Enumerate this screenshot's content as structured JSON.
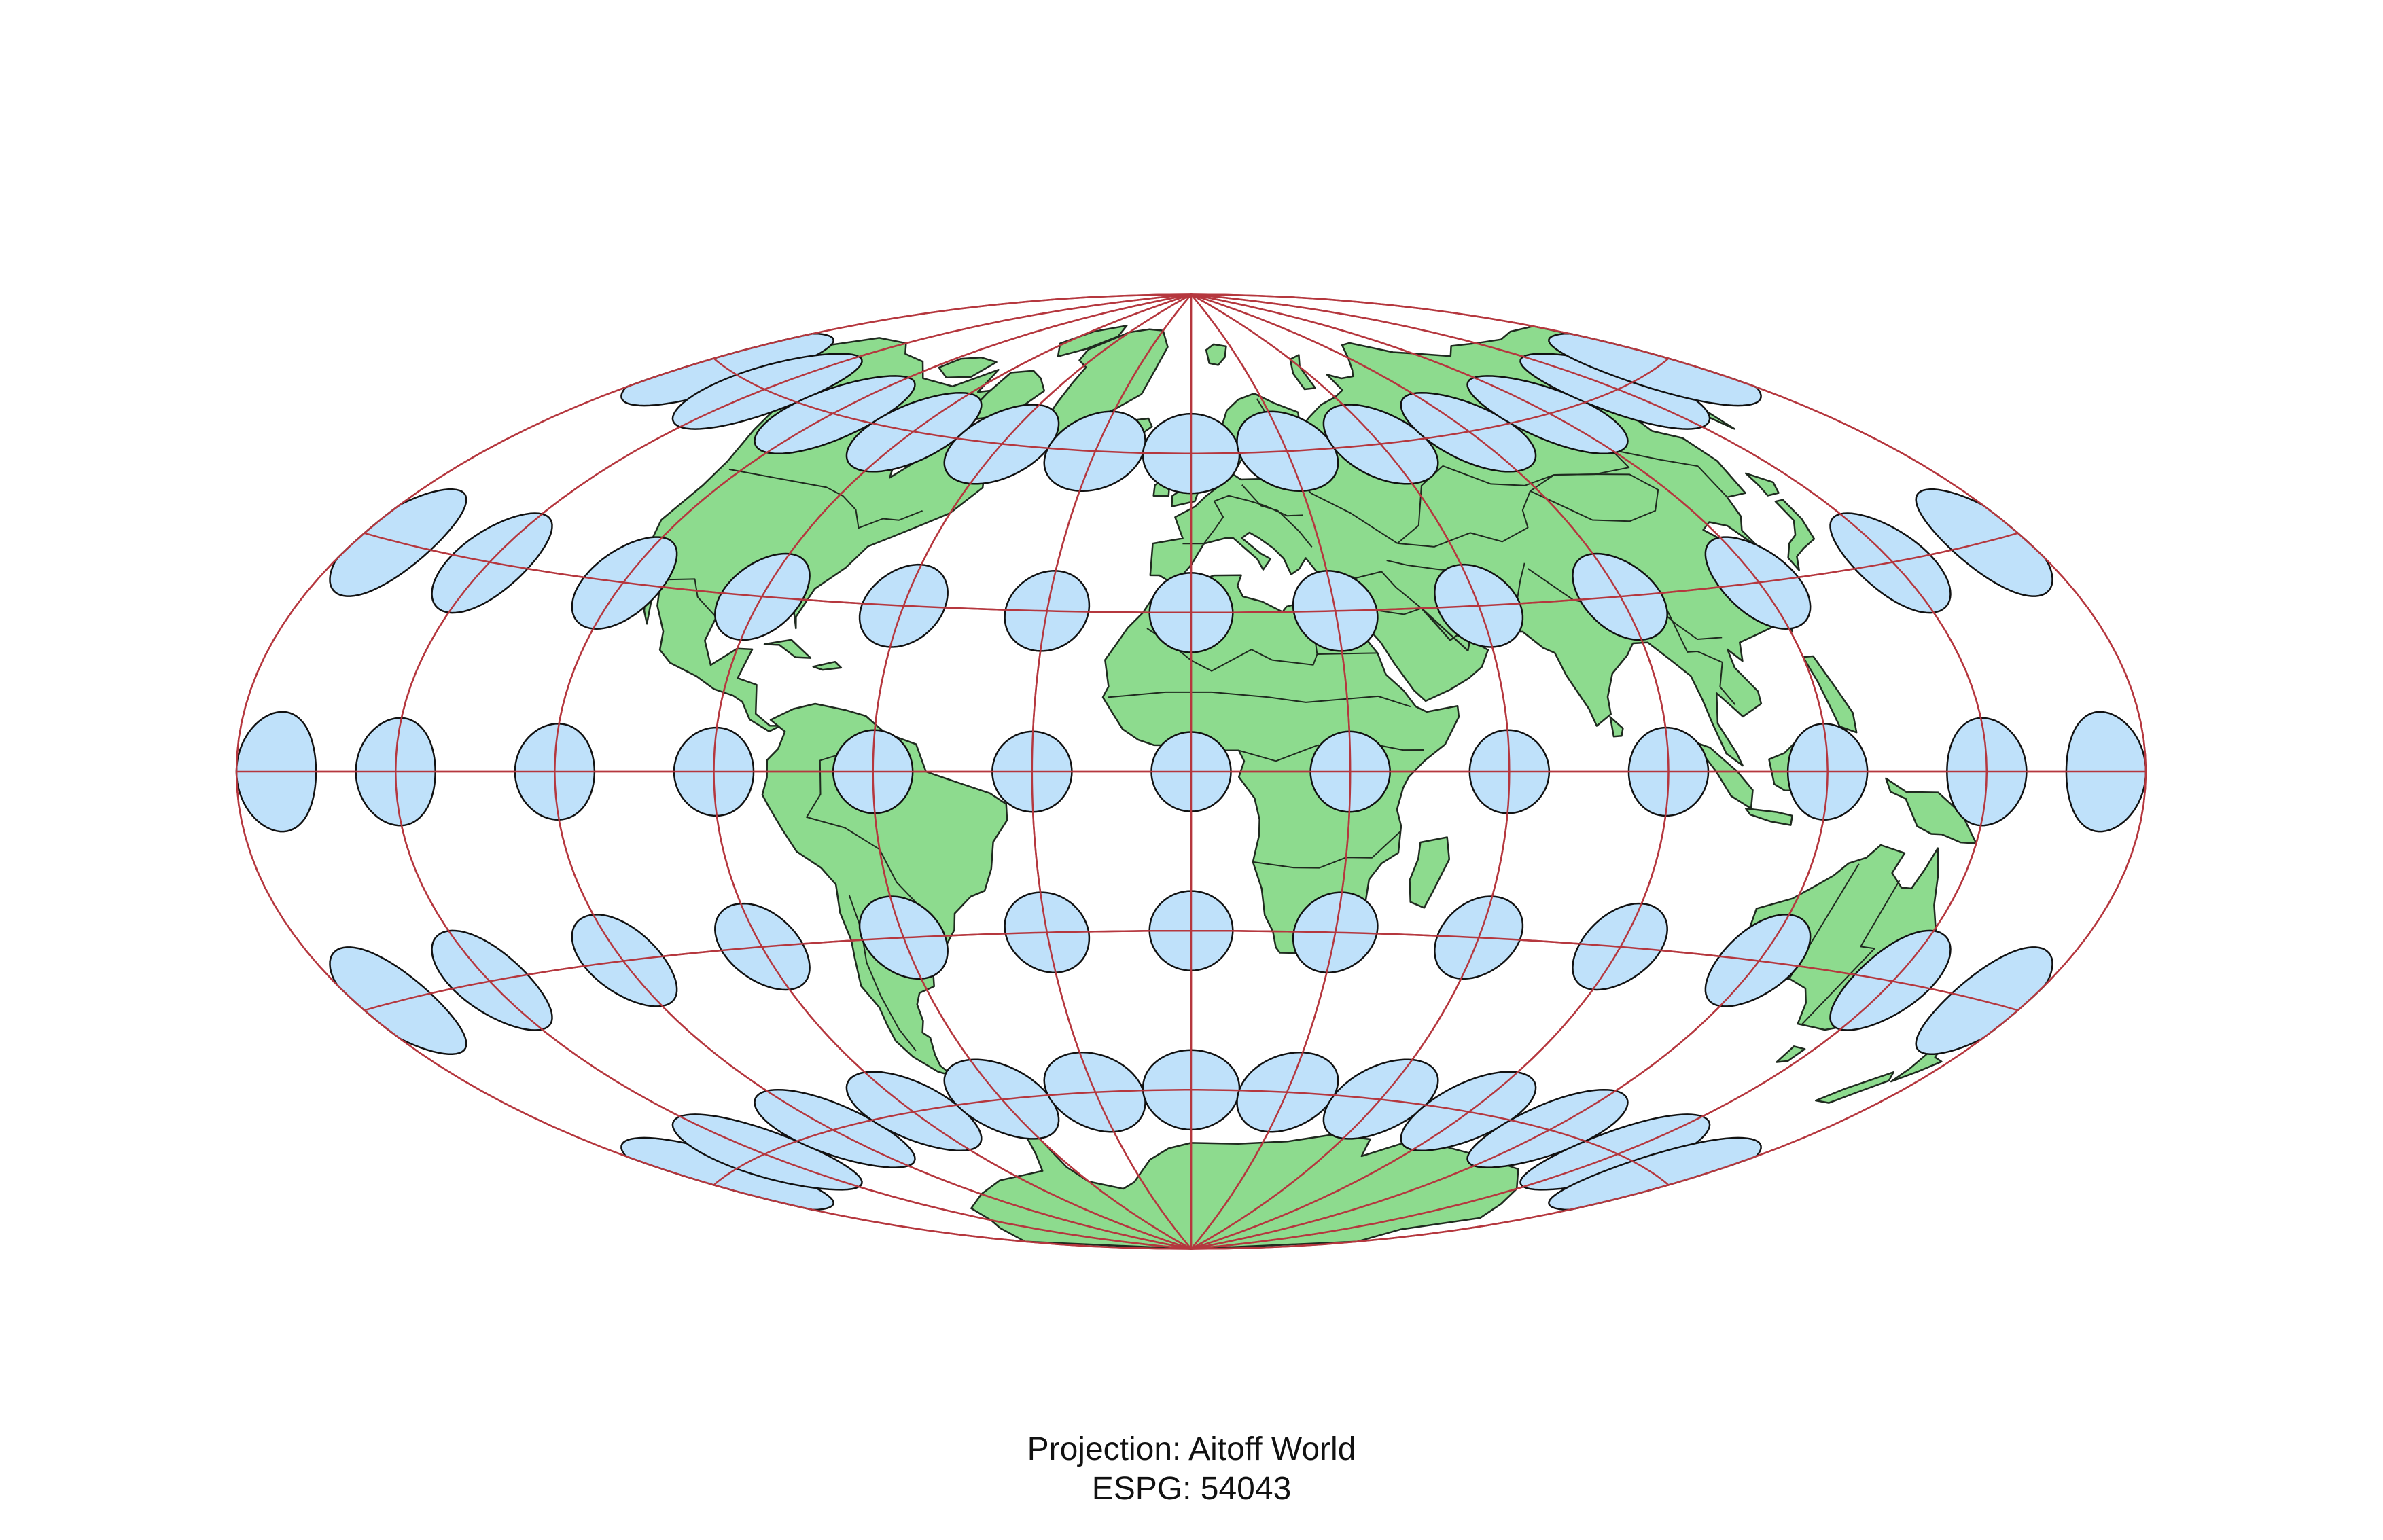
{
  "caption": {
    "projection": "Projection: Aitoff World",
    "epsg": "ESPG: 54043"
  },
  "map": {
    "projection": "Aitoff",
    "graticule_longitudes_deg": [
      -150,
      -120,
      -90,
      -60,
      -30,
      0,
      30,
      60,
      90,
      120,
      150,
      180,
      -180
    ],
    "graticule_latitudes_deg": [
      -60,
      -30,
      0,
      30,
      60
    ],
    "indicatrix_grid": {
      "longitudes_deg": [
        -180,
        -150,
        -120,
        -90,
        -60,
        -30,
        0,
        30,
        60,
        90,
        120,
        150,
        180
      ],
      "latitudes_deg": [
        -60,
        -30,
        0,
        30,
        60
      ]
    },
    "layers": [
      "land",
      "country borders",
      "graticule",
      "Tissot indicatrix"
    ]
  },
  "colors": {
    "land_fill": "#8ddb8e",
    "land_stroke": "#1f2a1f",
    "graticule": "#b5373e",
    "indicatrix_fill": "#bfe1fa",
    "indicatrix_stroke": "#111111",
    "background": "#ffffff"
  }
}
